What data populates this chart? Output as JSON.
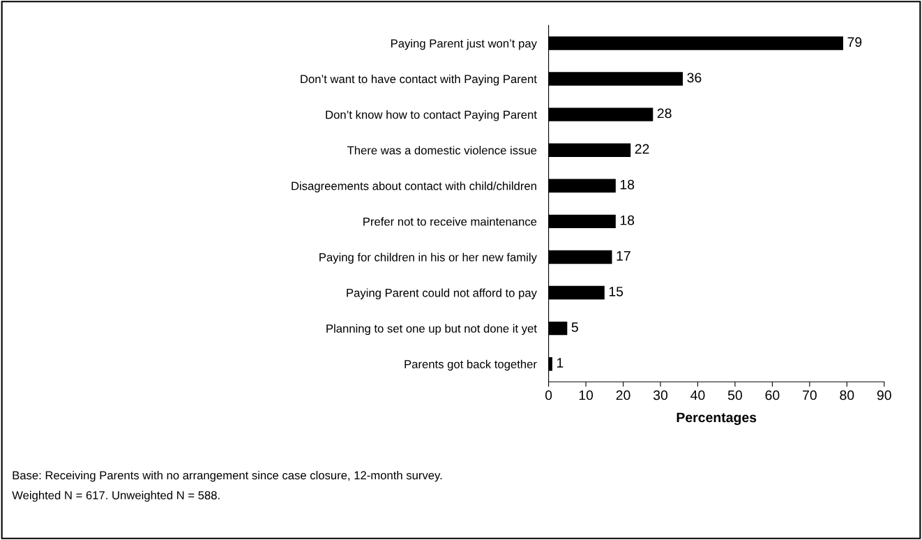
{
  "chart_data": {
    "type": "bar",
    "orientation": "horizontal",
    "xlabel": "Percentages",
    "categories": [
      "Paying Parent just won’t pay",
      "Don’t want to have contact with Paying Parent",
      "Don’t know how to contact Paying Parent",
      "There was a domestic violence issue",
      "Disagreements about contact with child/children",
      "Prefer not to receive maintenance",
      "Paying for children in his or her new family",
      "Paying Parent could not afford to pay",
      "Planning to set one up but not done it yet",
      "Parents got back together"
    ],
    "values": [
      79,
      36,
      28,
      22,
      18,
      18,
      17,
      15,
      5,
      1
    ],
    "color": "#000000",
    "data_labels": true,
    "xlim": [
      0,
      90
    ],
    "xticks": [
      0,
      10,
      20,
      30,
      40,
      50,
      60,
      70,
      80,
      90
    ],
    "grid": false,
    "legend": false,
    "annotations": [
      "Base: Receiving Parents with no arrangement since case closure, 12-month survey.",
      "Weighted N = 617. Unweighted N = 588."
    ]
  }
}
